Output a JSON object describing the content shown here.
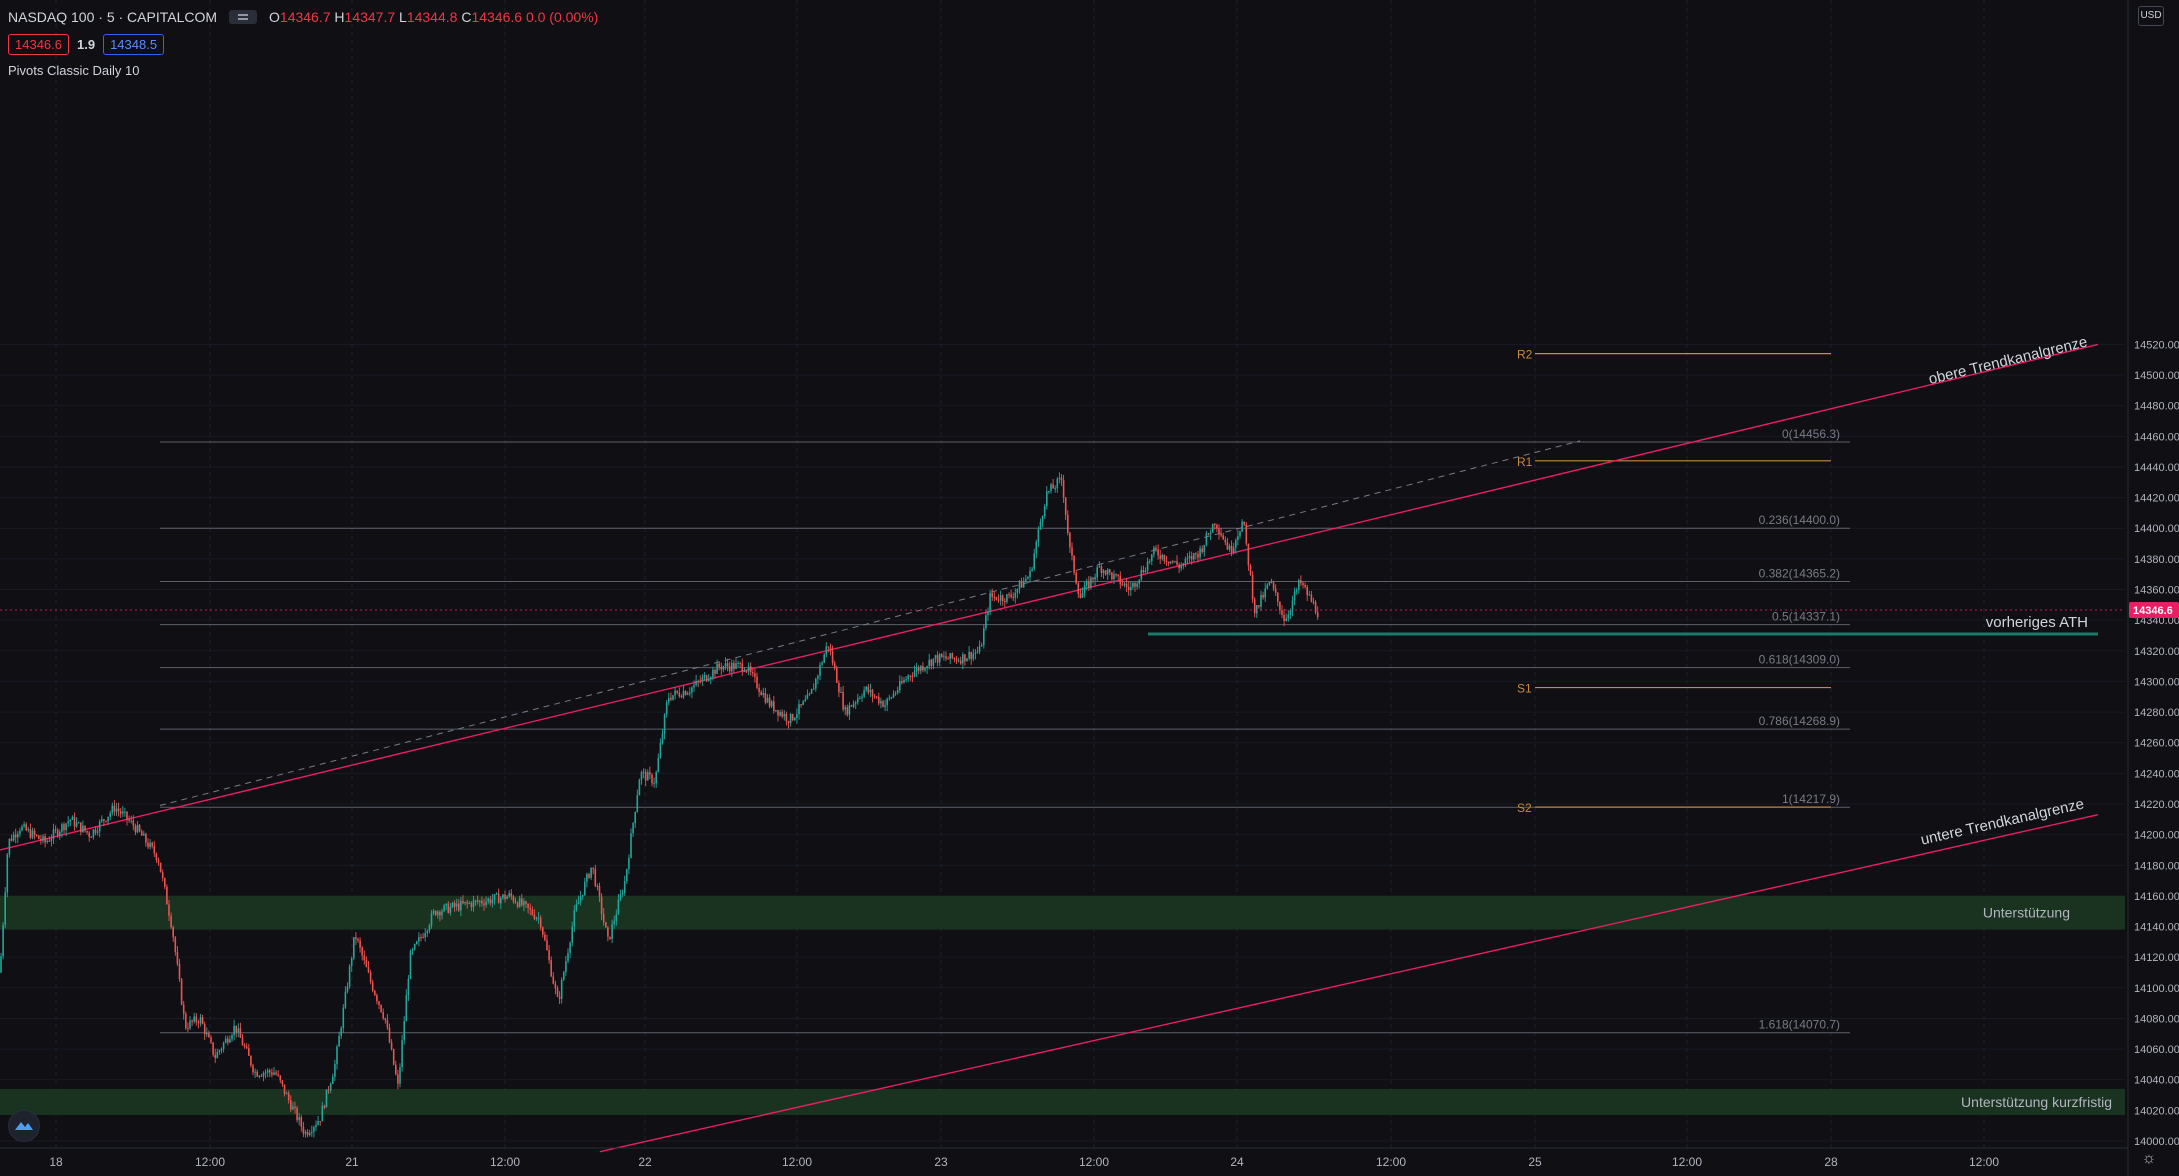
{
  "header": {
    "symbol": "NASDAQ 100 · 5 · CAPITALCOM",
    "o_label": "O",
    "o_value": "14346.7",
    "h_label": "H",
    "h_value": "14347.7",
    "l_label": "L",
    "l_value": "14344.8",
    "c_label": "C",
    "c_value": "14346.6",
    "change": "0.0 (0.00%)",
    "bid": "14346.6",
    "spread": "1.9",
    "ask": "14348.5",
    "indicator": "Pivots Classic Daily 10",
    "currency": "USD"
  },
  "colors": {
    "background": "#0f0f14",
    "up": "#26a69a",
    "down": "#ef5350",
    "trendline": "#e91e63",
    "pivot": "#c88a3c",
    "fib": "#787b86",
    "support_zone": "#1b3a22",
    "ath_line": "#1b7a68"
  },
  "chart_data": {
    "type": "candlestick",
    "series_interval": "5",
    "price_axis": {
      "ylim": [
        13995,
        14530
      ],
      "ticks": [
        14520,
        14500,
        14480,
        14460,
        14440,
        14420,
        14400,
        14380,
        14360,
        14340,
        14320,
        14300,
        14280,
        14260,
        14240,
        14220,
        14200,
        14180,
        14160,
        14140,
        14120,
        14100,
        14080,
        14060,
        14040,
        14020,
        14000
      ],
      "last_price": "14346.6"
    },
    "time_axis": {
      "labels": [
        "18",
        "12:00",
        "21",
        "12:00",
        "22",
        "12:00",
        "23",
        "12:00",
        "24",
        "12:00",
        "25",
        "12:00",
        "28",
        "12:00"
      ]
    },
    "price_path": [
      [
        0,
        14110
      ],
      [
        8,
        14195
      ],
      [
        20,
        14205
      ],
      [
        45,
        14195
      ],
      [
        70,
        14210
      ],
      [
        90,
        14200
      ],
      [
        115,
        14218
      ],
      [
        135,
        14205
      ],
      [
        158,
        14185
      ],
      [
        172,
        14140
      ],
      [
        185,
        14075
      ],
      [
        200,
        14080
      ],
      [
        215,
        14055
      ],
      [
        235,
        14075
      ],
      [
        255,
        14045
      ],
      [
        275,
        14045
      ],
      [
        290,
        14025
      ],
      [
        305,
        14005
      ],
      [
        320,
        14015
      ],
      [
        335,
        14050
      ],
      [
        355,
        14135
      ],
      [
        370,
        14105
      ],
      [
        385,
        14080
      ],
      [
        398,
        14035
      ],
      [
        410,
        14120
      ],
      [
        435,
        14150
      ],
      [
        470,
        14155
      ],
      [
        510,
        14160
      ],
      [
        540,
        14145
      ],
      [
        558,
        14090
      ],
      [
        575,
        14150
      ],
      [
        592,
        14180
      ],
      [
        608,
        14130
      ],
      [
        625,
        14170
      ],
      [
        640,
        14240
      ],
      [
        655,
        14235
      ],
      [
        668,
        14290
      ],
      [
        690,
        14295
      ],
      [
        720,
        14310
      ],
      [
        745,
        14310
      ],
      [
        770,
        14285
      ],
      [
        790,
        14275
      ],
      [
        810,
        14290
      ],
      [
        828,
        14325
      ],
      [
        845,
        14280
      ],
      [
        865,
        14295
      ],
      [
        885,
        14285
      ],
      [
        910,
        14305
      ],
      [
        935,
        14315
      ],
      [
        960,
        14315
      ],
      [
        980,
        14320
      ],
      [
        990,
        14355
      ],
      [
        1010,
        14355
      ],
      [
        1030,
        14370
      ],
      [
        1046,
        14422
      ],
      [
        1062,
        14432
      ],
      [
        1070,
        14385
      ],
      [
        1080,
        14355
      ],
      [
        1100,
        14375
      ],
      [
        1130,
        14360
      ],
      [
        1155,
        14385
      ],
      [
        1180,
        14375
      ],
      [
        1200,
        14385
      ],
      [
        1215,
        14405
      ],
      [
        1230,
        14385
      ],
      [
        1243,
        14405
      ],
      [
        1255,
        14345
      ],
      [
        1270,
        14365
      ],
      [
        1285,
        14340
      ],
      [
        1300,
        14365
      ],
      [
        1318,
        14345
      ]
    ],
    "pivots": [
      {
        "label": "R2",
        "value": 14514
      },
      {
        "label": "R1",
        "value": 14444
      },
      {
        "label": "S1",
        "value": 14296
      },
      {
        "label": "S2",
        "value": 14218
      }
    ],
    "fib_levels": [
      {
        "label": "0(14456.3)",
        "value": 14456.3
      },
      {
        "label": "0.236(14400.0)",
        "value": 14400.0
      },
      {
        "label": "0.382(14365.2)",
        "value": 14365.2
      },
      {
        "label": "0.5(14337.1)",
        "value": 14337.1
      },
      {
        "label": "0.618(14309.0)",
        "value": 14309.0
      },
      {
        "label": "0.786(14268.9)",
        "value": 14268.9
      },
      {
        "label": "1(14217.9)",
        "value": 14217.9
      },
      {
        "label": "1.618(14070.7)",
        "value": 14070.7
      }
    ],
    "zones": [
      {
        "label": "Unterstützung",
        "from": 14138,
        "to": 14160
      },
      {
        "label": "Unterstützung kurzfristig",
        "from": 14017,
        "to": 14034
      }
    ],
    "ath": {
      "label": "vorheriges ATH",
      "value": 14331
    },
    "trend_upper": {
      "label": "obere Trendkanalgrenze"
    },
    "trend_lower": {
      "label": "untere Trendkanalgrenze"
    }
  }
}
